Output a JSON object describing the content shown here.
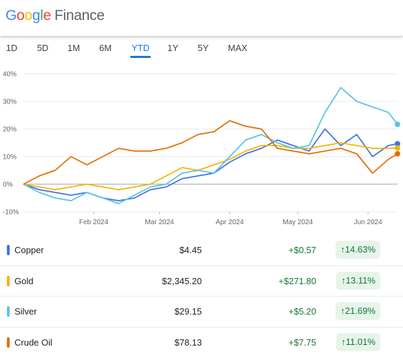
{
  "header": {
    "logo_text": "Google",
    "product": "Finance",
    "logo_colors": [
      "#4285F4",
      "#EA4335",
      "#FBBC05",
      "#4285F4",
      "#34A853",
      "#EA4335"
    ]
  },
  "tabs": [
    "1D",
    "5D",
    "1M",
    "6M",
    "YTD",
    "1Y",
    "5Y",
    "MAX"
  ],
  "active_tab": "YTD",
  "chart_data": {
    "type": "line",
    "y_unit": "%",
    "ylim": [
      -10,
      40
    ],
    "yticks": [
      "40%",
      "30%",
      "20%",
      "10%",
      "0%",
      "-10%"
    ],
    "xlabels": [
      "Feb 2024",
      "Mar 2024",
      "Apr 2024",
      "May 2024",
      "Jun 2024"
    ],
    "grid": true,
    "series": [
      {
        "name": "Copper",
        "color": "#4170e5",
        "x": [
          "2024-01-01",
          "2024-01-08",
          "2024-01-15",
          "2024-01-22",
          "2024-01-29",
          "2024-02-05",
          "2024-02-12",
          "2024-02-19",
          "2024-02-26",
          "2024-03-04",
          "2024-03-11",
          "2024-03-18",
          "2024-03-25",
          "2024-04-01",
          "2024-04-08",
          "2024-04-15",
          "2024-04-22",
          "2024-04-29",
          "2024-05-06",
          "2024-05-13",
          "2024-05-20",
          "2024-05-27",
          "2024-06-03",
          "2024-06-10",
          "2024-06-14"
        ],
        "y": [
          0,
          -2,
          -3,
          -4,
          -3,
          -5,
          -6,
          -5,
          -2,
          -1,
          2,
          3,
          4,
          8,
          11,
          13,
          16,
          14,
          12,
          20,
          14,
          18,
          10,
          14,
          14.63
        ]
      },
      {
        "name": "Gold",
        "color": "#f4b400",
        "x": [
          "2024-01-01",
          "2024-01-08",
          "2024-01-15",
          "2024-01-22",
          "2024-01-29",
          "2024-02-05",
          "2024-02-12",
          "2024-02-19",
          "2024-02-26",
          "2024-03-04",
          "2024-03-11",
          "2024-03-18",
          "2024-03-25",
          "2024-04-01",
          "2024-04-08",
          "2024-04-15",
          "2024-04-22",
          "2024-04-29",
          "2024-05-06",
          "2024-05-13",
          "2024-05-20",
          "2024-05-27",
          "2024-06-03",
          "2024-06-10",
          "2024-06-14"
        ],
        "y": [
          0,
          -1,
          -2,
          -1,
          0,
          -1,
          -2,
          -1,
          0,
          3,
          6,
          5,
          7,
          9,
          12,
          14,
          14,
          13,
          13,
          14,
          15,
          14,
          13,
          13,
          13.11
        ]
      },
      {
        "name": "Silver",
        "color": "#5bc3e6",
        "x": [
          "2024-01-01",
          "2024-01-08",
          "2024-01-15",
          "2024-01-22",
          "2024-01-29",
          "2024-02-05",
          "2024-02-12",
          "2024-02-19",
          "2024-02-26",
          "2024-03-04",
          "2024-03-11",
          "2024-03-18",
          "2024-03-25",
          "2024-04-01",
          "2024-04-08",
          "2024-04-15",
          "2024-04-22",
          "2024-04-29",
          "2024-05-06",
          "2024-05-13",
          "2024-05-20",
          "2024-05-27",
          "2024-06-03",
          "2024-06-10",
          "2024-06-14"
        ],
        "y": [
          0,
          -3,
          -5,
          -6,
          -3,
          -5,
          -7,
          -4,
          -1,
          0,
          4,
          5,
          4,
          10,
          16,
          18,
          15,
          13,
          14,
          26,
          35,
          30,
          28,
          26,
          21.69
        ]
      },
      {
        "name": "Crude Oil",
        "color": "#e07000",
        "x": [
          "2024-01-01",
          "2024-01-08",
          "2024-01-15",
          "2024-01-22",
          "2024-01-29",
          "2024-02-05",
          "2024-02-12",
          "2024-02-19",
          "2024-02-26",
          "2024-03-04",
          "2024-03-11",
          "2024-03-18",
          "2024-03-25",
          "2024-04-01",
          "2024-04-08",
          "2024-04-15",
          "2024-04-22",
          "2024-04-29",
          "2024-05-06",
          "2024-05-13",
          "2024-05-20",
          "2024-05-27",
          "2024-06-03",
          "2024-06-10",
          "2024-06-14"
        ],
        "y": [
          0,
          3,
          5,
          10,
          7,
          10,
          13,
          12,
          12,
          13,
          15,
          18,
          19,
          23,
          21,
          20,
          13,
          12,
          11,
          12,
          13,
          11,
          4,
          9,
          11.01
        ]
      }
    ]
  },
  "rows": [
    {
      "name": "Copper",
      "price": "$4.45",
      "change": "+$0.57",
      "pct": "↑14.63%",
      "color": "#4170e5"
    },
    {
      "name": "Gold",
      "price": "$2,345.20",
      "change": "+$271.80",
      "pct": "↑13.11%",
      "color": "#f4b400"
    },
    {
      "name": "Silver",
      "price": "$29.15",
      "change": "+$5.20",
      "pct": "↑21.69%",
      "color": "#5bc3e6"
    },
    {
      "name": "Crude Oil",
      "price": "$78.13",
      "change": "+$7.75",
      "pct": "↑11.01%",
      "color": "#e07000"
    }
  ]
}
